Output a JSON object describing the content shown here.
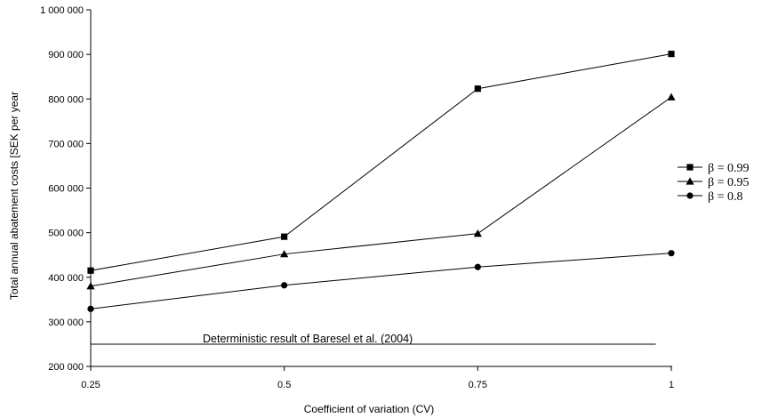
{
  "chart_data": {
    "type": "line",
    "title": "",
    "xlabel": "Coefficient of variation (CV)",
    "ylabel": "Total annual abatement costs [SEK per year",
    "x": [
      0.25,
      0.5,
      0.75,
      1
    ],
    "x_tick_labels": [
      "0.25",
      "0.5",
      "0.75",
      "1"
    ],
    "ylim": [
      200000,
      1000000
    ],
    "y_ticks": [
      200000,
      300000,
      400000,
      500000,
      600000,
      700000,
      800000,
      900000,
      1000000
    ],
    "y_tick_labels": [
      "200 000",
      "300 000",
      "400 000",
      "500 000",
      "600 000",
      "700 000",
      "800 000",
      "900 000",
      "1 000 000"
    ],
    "grid": false,
    "legend_position": "right",
    "series": [
      {
        "name": "β = 0.99",
        "marker": "square",
        "values": [
          415000,
          491000,
          823000,
          901000
        ]
      },
      {
        "name": "β = 0.95",
        "marker": "triangle",
        "values": [
          380000,
          452000,
          498000,
          804000
        ]
      },
      {
        "name": "β = 0.8",
        "marker": "circle",
        "values": [
          329000,
          382000,
          423000,
          454000
        ]
      }
    ],
    "reference_line": {
      "label": "Deterministic result of Baresel et al. (2004)",
      "value": 250000,
      "x_range": [
        0.25,
        0.98
      ]
    },
    "colors": {
      "line": "#000000",
      "marker": "#000000",
      "axis": "#000000"
    }
  }
}
